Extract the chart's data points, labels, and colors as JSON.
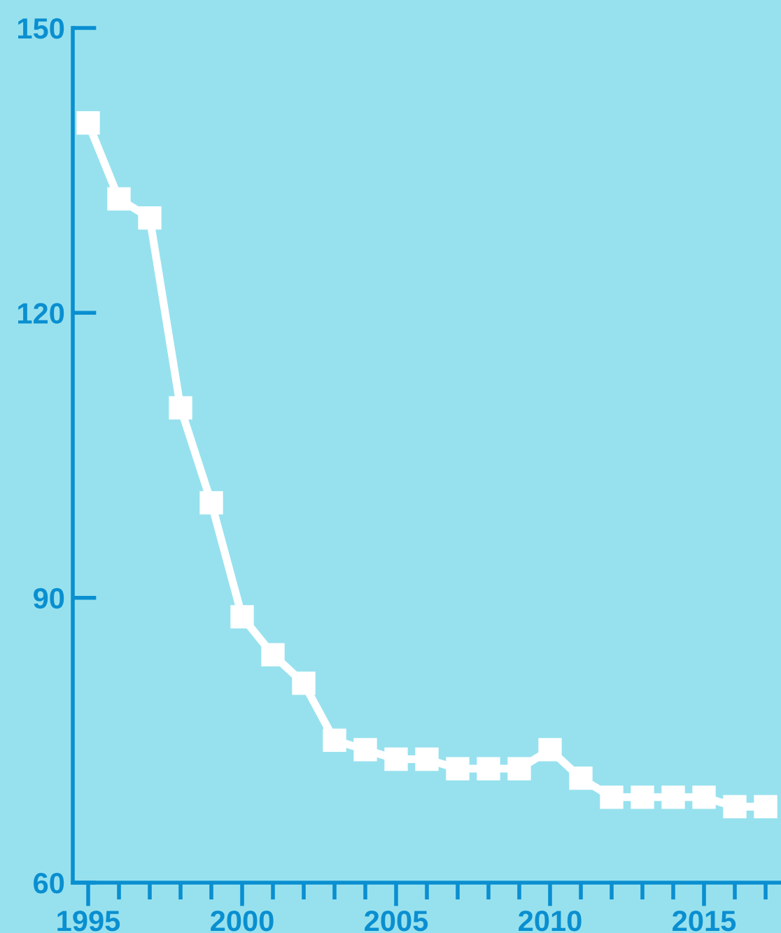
{
  "chart_data": {
    "type": "line",
    "x": [
      1995,
      1996,
      1997,
      1998,
      1999,
      2000,
      2001,
      2002,
      2003,
      2004,
      2005,
      2006,
      2007,
      2008,
      2009,
      2010,
      2011,
      2012,
      2013,
      2014,
      2015,
      2016,
      2017
    ],
    "series": [
      {
        "color": "#ffffff",
        "values": [
          140,
          132,
          130,
          110,
          100,
          88,
          84,
          81,
          75,
          74,
          73,
          73,
          72,
          72,
          72,
          74,
          71,
          69,
          69,
          69,
          69,
          68,
          68
        ]
      }
    ],
    "xlim": [
      1994.5,
      2017.5
    ],
    "xticks": [
      1995,
      {
        "value": 1996,
        "label": null
      },
      {
        "value": 1997,
        "label": null
      },
      {
        "value": 1998,
        "label": null
      },
      {
        "value": 1999,
        "label": null
      },
      2000,
      {
        "value": 2001,
        "label": null
      },
      {
        "value": 2002,
        "label": null
      },
      {
        "value": 2003,
        "label": null
      },
      {
        "value": 2004,
        "label": null
      },
      2005,
      {
        "value": 2006,
        "label": null
      },
      {
        "value": 2007,
        "label": null
      },
      {
        "value": 2008,
        "label": null
      },
      {
        "value": 2009,
        "label": null
      },
      2010,
      {
        "value": 2011,
        "label": null
      },
      {
        "value": 2012,
        "label": null
      },
      {
        "value": 2013,
        "label": null
      },
      {
        "value": 2014,
        "label": null
      },
      2015,
      {
        "value": 2016,
        "label": null
      },
      {
        "value": 2017,
        "label": null
      }
    ],
    "ylim": [
      60,
      150
    ],
    "yticks": [
      60,
      90,
      120,
      150
    ],
    "grid": false,
    "marker": "square",
    "line_style": "solid"
  }
}
